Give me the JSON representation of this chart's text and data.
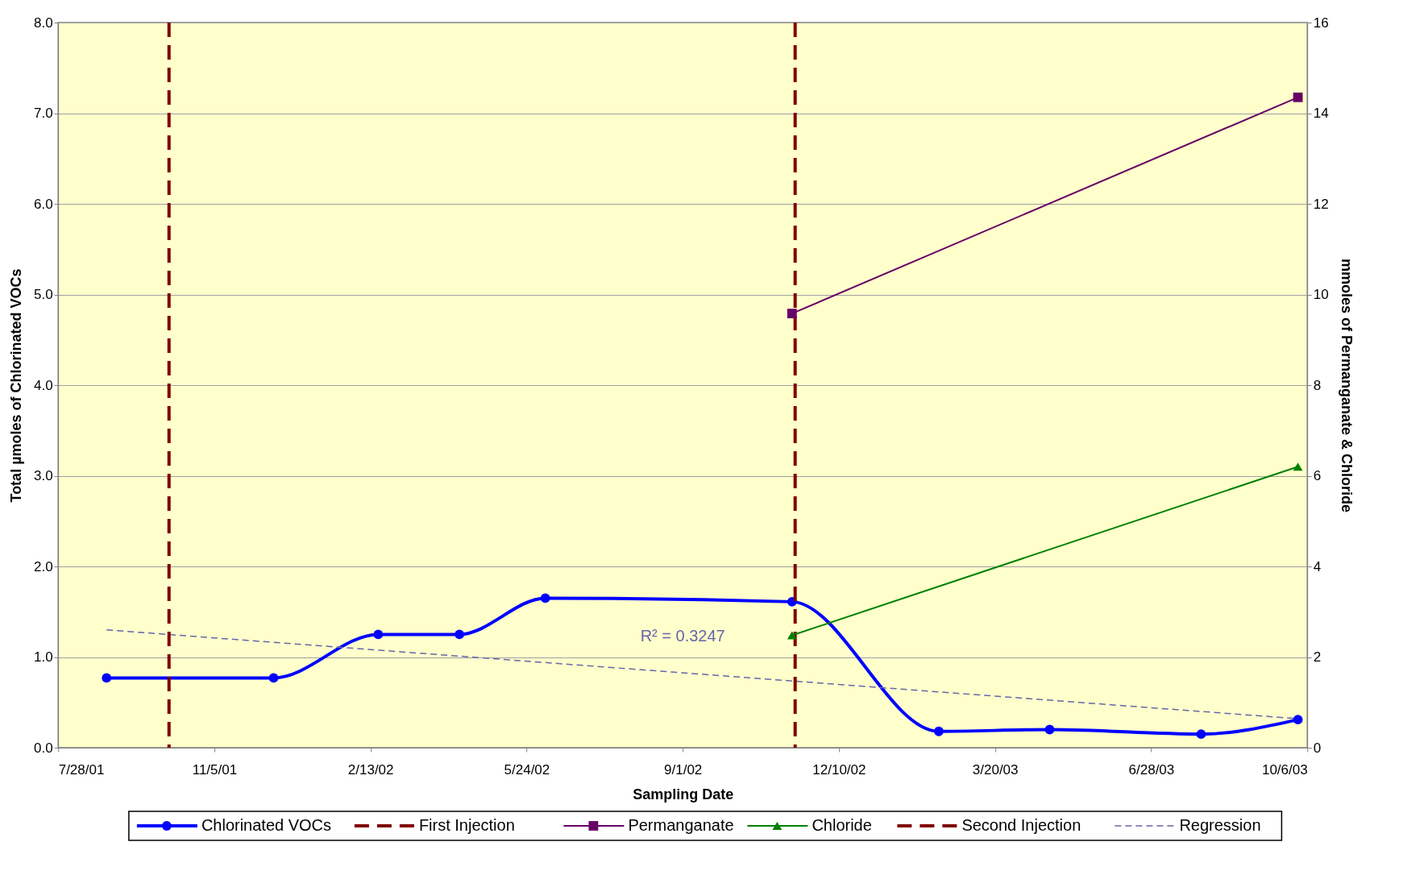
{
  "chart_data": {
    "type": "line",
    "xlabel": "Sampling Date",
    "ylabel": "Total µmoles of Chlorinated VOCs",
    "y2label": "mmoles of Permanganate & Chloride",
    "xlim": [
      "2001-07-28",
      "2003-10-06"
    ],
    "xticks": [
      {
        "value": "2001-07-28",
        "label": "7/28/01"
      },
      {
        "value": "2001-11-05",
        "label": "11/5/01"
      },
      {
        "value": "2002-02-13",
        "label": "2/13/02"
      },
      {
        "value": "2002-05-24",
        "label": "5/24/02"
      },
      {
        "value": "2002-09-01",
        "label": "9/1/02"
      },
      {
        "value": "2002-12-10",
        "label": "12/10/02"
      },
      {
        "value": "2003-03-20",
        "label": "3/20/03"
      },
      {
        "value": "2003-06-28",
        "label": "6/28/03"
      },
      {
        "value": "2003-10-06",
        "label": "10/6/03"
      }
    ],
    "ylim": [
      0,
      8
    ],
    "yticks": [
      {
        "value": 0,
        "label": "0.0"
      },
      {
        "value": 1,
        "label": "1.0"
      },
      {
        "value": 2,
        "label": "2.0"
      },
      {
        "value": 3,
        "label": "3.0"
      },
      {
        "value": 4,
        "label": "4.0"
      },
      {
        "value": 5,
        "label": "5.0"
      },
      {
        "value": 6,
        "label": "6.0"
      },
      {
        "value": 7,
        "label": "7.0"
      },
      {
        "value": 8,
        "label": "8.0"
      }
    ],
    "y2lim": [
      0,
      16
    ],
    "y2ticks": [
      0,
      2,
      4,
      6,
      8,
      10,
      12,
      14,
      16
    ],
    "grid": "y",
    "legend": "bottom",
    "series": [
      {
        "name": "Chlorinated VOCs",
        "color": "#0000ff",
        "marker": "circle",
        "line_style": "solid",
        "x": [
          "2001-08-28",
          "2001-12-13",
          "2002-02-18",
          "2002-04-11",
          "2002-06-05",
          "2002-11-10",
          "2003-02-12",
          "2003-04-24",
          "2003-07-30",
          "2003-09-30"
        ],
        "values": [
          0.77,
          0.77,
          1.25,
          1.25,
          1.65,
          1.61,
          0.18,
          0.2,
          0.15,
          0.31
        ]
      },
      {
        "name": "Permanganate",
        "color": "#660066",
        "marker": "square",
        "line_style": "solid",
        "axis": "y2",
        "x": [
          "2002-11-10",
          "2003-09-30"
        ],
        "values": [
          9.58,
          14.35
        ]
      },
      {
        "name": "Chloride",
        "color": "#008000",
        "marker": "triangle",
        "line_style": "solid",
        "axis": "y2",
        "x": [
          "2002-11-10",
          "2003-09-30"
        ],
        "values": [
          2.48,
          6.2
        ]
      },
      {
        "name": "Regression",
        "color": "#6666aa",
        "marker": "none",
        "line_style": "dashed",
        "x": [
          "2001-08-28",
          "2003-09-30"
        ],
        "values": [
          1.3,
          0.32
        ]
      }
    ],
    "ref_lines": [
      {
        "axis": "x",
        "value": "2001-10-07",
        "label": "First Injection",
        "color": "#800000",
        "line_style": "dashed"
      },
      {
        "axis": "x",
        "value": "2002-11-12",
        "label": "Second Injection",
        "color": "#800000",
        "line_style": "dashed"
      }
    ],
    "annotations": [
      "R² = 0.3247"
    ]
  }
}
